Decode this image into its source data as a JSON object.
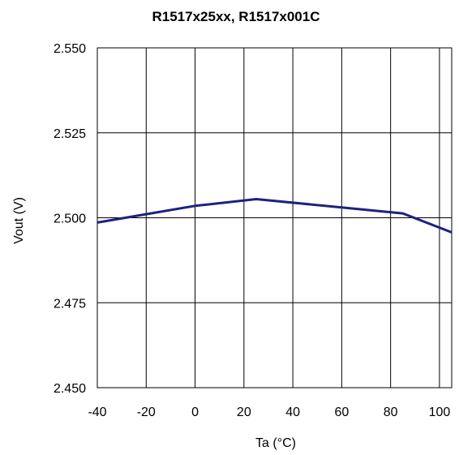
{
  "chart_data": {
    "type": "line",
    "title": "R1517x25xx, R1517x001C",
    "xlabel": "Ta (°C)",
    "ylabel": "Vout (V)",
    "xlim": [
      -40,
      105
    ],
    "ylim": [
      2.45,
      2.55
    ],
    "x_ticks": [
      -40,
      -20,
      0,
      20,
      40,
      60,
      80,
      100
    ],
    "x_tick_labels": [
      "-40",
      "-20",
      "0",
      "20",
      "40",
      "60",
      "80",
      "100"
    ],
    "y_ticks": [
      2.45,
      2.475,
      2.5,
      2.525,
      2.55
    ],
    "y_tick_labels": [
      "2.450",
      "2.475",
      "2.500",
      "2.525",
      "2.550"
    ],
    "grid": true,
    "series": [
      {
        "color": "#1a237e",
        "x": [
          -40,
          0,
          25,
          85,
          105
        ],
        "y": [
          2.4986,
          2.5035,
          2.5055,
          2.5013,
          2.4957
        ]
      }
    ]
  }
}
